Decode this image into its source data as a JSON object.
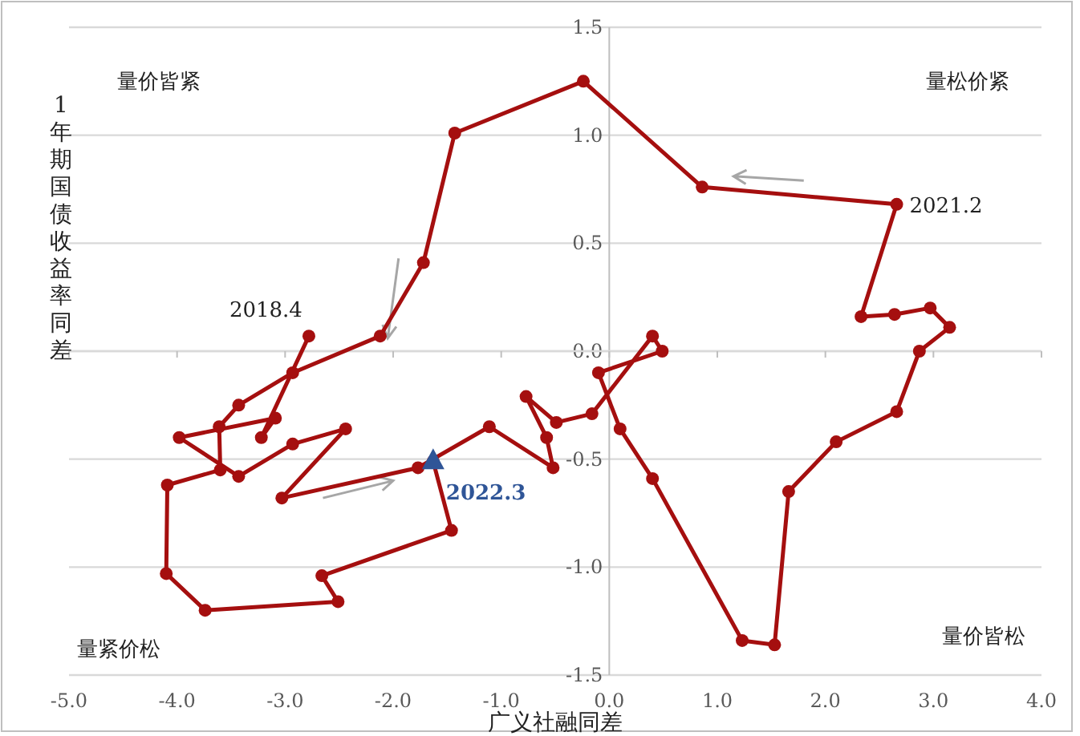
{
  "chart_data": {
    "type": "line",
    "xlabel": "广义社融同差",
    "ylabel": "1年期国债收益率同差",
    "xlim": [
      -5,
      4
    ],
    "xticks": [
      {
        "value": -5,
        "label": "-5.0"
      },
      {
        "value": -4,
        "label": "-4.0"
      },
      {
        "value": -3,
        "label": "-3.0"
      },
      {
        "value": -2,
        "label": "-2.0"
      },
      {
        "value": -1,
        "label": "-1.0"
      },
      {
        "value": 0,
        "label": "0.0"
      },
      {
        "value": 1,
        "label": "1.0"
      },
      {
        "value": 2,
        "label": "2.0"
      },
      {
        "value": 3,
        "label": "3.0"
      },
      {
        "value": 4,
        "label": "4.0"
      }
    ],
    "ylim": [
      -1.5,
      1.5
    ],
    "yticks": [
      {
        "value": -1.5,
        "label": "-1.5"
      },
      {
        "value": -1,
        "label": "-1.0"
      },
      {
        "value": -0.5,
        "label": "-0.5"
      },
      {
        "value": 0,
        "label": "0.0"
      },
      {
        "value": 0.5,
        "label": "0.5"
      },
      {
        "value": 1,
        "label": "1.0"
      },
      {
        "value": 1.5,
        "label": "1.5"
      }
    ],
    "grid": "y",
    "series": [
      {
        "type": "line",
        "color": "#a50f0f",
        "marker": "circle",
        "x": [
          -2.78,
          -3.22,
          -3.09,
          -3.98,
          -3.43,
          -2.93,
          -2.44,
          -3.03,
          -1.77,
          -1.11,
          -0.52,
          -0.58,
          -0.77,
          -0.49,
          -0.16,
          0.4,
          0.49,
          -0.1,
          0.1,
          0.4,
          1.23,
          1.53,
          1.66,
          2.1,
          2.66,
          2.87,
          3.15,
          2.97,
          2.64,
          2.33,
          2.66,
          0.86,
          -0.24,
          -1.43,
          -1.72,
          -2.12,
          -2.93,
          -3.43,
          -3.61,
          -3.6,
          -4.09,
          -4.1,
          -3.74,
          -2.51,
          -2.66,
          -1.46,
          -1.63
        ],
        "values": [
          0.07,
          -0.4,
          -0.31,
          -0.4,
          -0.58,
          -0.43,
          -0.36,
          -0.68,
          -0.54,
          -0.35,
          -0.54,
          -0.4,
          -0.21,
          -0.33,
          -0.29,
          0.07,
          0.0,
          -0.1,
          -0.36,
          -0.59,
          -1.34,
          -1.36,
          -0.65,
          -0.42,
          -0.28,
          0.0,
          0.11,
          0.2,
          0.17,
          0.16,
          0.68,
          0.76,
          1.25,
          1.01,
          0.41,
          0.07,
          -0.1,
          -0.25,
          -0.35,
          -0.55,
          -0.62,
          -1.03,
          -1.2,
          -1.16,
          -1.04,
          -0.83,
          -0.51
        ]
      },
      {
        "type": "scatter",
        "color": "#2f5597",
        "marker": "triangle",
        "x": [
          -1.63
        ],
        "values": [
          -0.51
        ]
      }
    ],
    "annotations": [
      {
        "text": "2018.4",
        "x": -2.78,
        "y": 0.07
      },
      {
        "text": "2021.2",
        "x": 2.66,
        "y": 0.68
      },
      {
        "text": "2022.3",
        "x": -1.63,
        "y": -0.51
      },
      "量价皆紧",
      "量松价紧",
      "量紧价松",
      "量价皆松"
    ]
  }
}
